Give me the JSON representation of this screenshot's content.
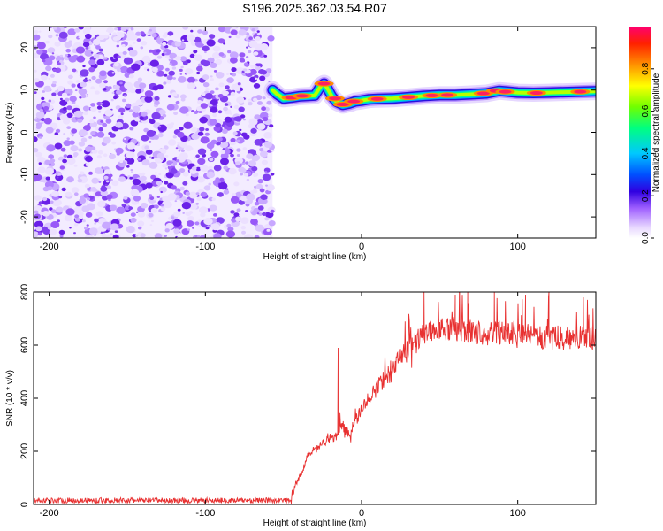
{
  "figure": {
    "title": "S196.2025.362.03.54.R07"
  },
  "chart_data": [
    {
      "type": "heatmap",
      "title": "S196.2025.362.03.54.R07",
      "xlabel": "Height of straight line (km)",
      "ylabel": "Frequency (Hz)",
      "xlim": [
        -210,
        150
      ],
      "ylim": [
        -25,
        25
      ],
      "xticks": [
        -200,
        -100,
        0,
        100
      ],
      "yticks": [
        -20,
        -10,
        0,
        10,
        20
      ],
      "colorbar": {
        "label": "Normalized spectral amplitude",
        "range": [
          0,
          1
        ],
        "ticks": [
          0.0,
          0.2,
          0.4,
          0.6,
          0.8
        ],
        "colormap": [
          "#e8d8ff",
          "#a060ff",
          "#2000e0",
          "#00a0ff",
          "#00ff80",
          "#c0ff00",
          "#ffe000",
          "#ff8000",
          "#ff2000",
          "#ff0080"
        ]
      },
      "noise_region": {
        "x_range": [
          -210,
          -57
        ],
        "freq_range": [
          -25,
          25
        ],
        "amplitude": "low"
      },
      "signal_track": [
        [
          -57,
          10
        ],
        [
          -54,
          9
        ],
        [
          -50,
          8
        ],
        [
          -45,
          8.2
        ],
        [
          -40,
          8.5
        ],
        [
          -35,
          8.6
        ],
        [
          -30,
          8.7
        ],
        [
          -26,
          11
        ],
        [
          -24,
          11.5
        ],
        [
          -22,
          10.5
        ],
        [
          -19,
          8.5
        ],
        [
          -16,
          7.2
        ],
        [
          -12,
          6.5
        ],
        [
          -8,
          6.8
        ],
        [
          -4,
          7.3
        ],
        [
          0,
          7.5
        ],
        [
          5,
          7.8
        ],
        [
          10,
          7.9
        ],
        [
          20,
          8.0
        ],
        [
          30,
          8.3
        ],
        [
          40,
          8.6
        ],
        [
          50,
          8.8
        ],
        [
          60,
          8.8
        ],
        [
          70,
          9.0
        ],
        [
          80,
          9.2
        ],
        [
          88,
          9.8
        ],
        [
          94,
          9.6
        ],
        [
          100,
          9.4
        ],
        [
          110,
          9.3
        ],
        [
          120,
          9.4
        ],
        [
          130,
          9.5
        ],
        [
          140,
          9.6
        ],
        [
          150,
          9.7
        ]
      ]
    },
    {
      "type": "line",
      "xlabel": "Height of straight line (km)",
      "ylabel": "SNR (10 * v/v)",
      "xlim": [
        -210,
        150
      ],
      "ylim": [
        0,
        800
      ],
      "xticks": [
        -200,
        -100,
        0,
        100
      ],
      "yticks": [
        0,
        200,
        400,
        600,
        800
      ],
      "color": "#e83030",
      "series": [
        {
          "x": [
            -210,
            -150,
            -100,
            -60,
            -45,
            -42,
            -38,
            -35,
            -30,
            -25,
            -20,
            -15,
            -12,
            -10,
            -8,
            -5,
            0,
            5,
            10,
            15,
            20,
            25,
            30,
            35,
            40,
            45,
            50,
            60,
            70,
            80,
            90,
            100,
            110,
            120,
            130,
            140,
            150
          ],
          "values": [
            15,
            15,
            15,
            15,
            15,
            80,
            120,
            180,
            200,
            230,
            250,
            260,
            300,
            280,
            260,
            300,
            360,
            400,
            440,
            480,
            500,
            560,
            590,
            610,
            640,
            660,
            660,
            660,
            650,
            640,
            650,
            640,
            630,
            630,
            630,
            630,
            620
          ]
        }
      ]
    }
  ]
}
